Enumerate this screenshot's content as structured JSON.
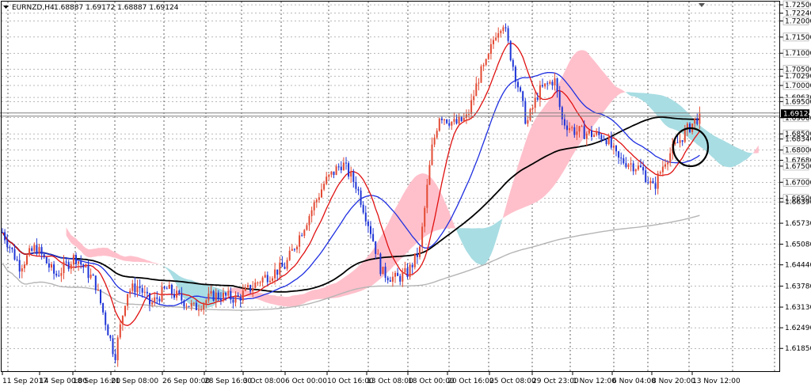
{
  "header": {
    "symbol_label": "EURNZD,H4",
    "ohlc_text": "1.68887 1.69172 1.68887 1.69124"
  },
  "colors": {
    "background": "#ffffff",
    "candle_up": "#e34a33",
    "candle_down": "#1f35d6",
    "ma_fast": "#e01010",
    "ma_mid": "#1f2fe0",
    "ma_slow": "#000000",
    "ma_200": "#b5b5b5",
    "kumo_bull": "#ffc0cb",
    "kumo_bear": "#a8dde3",
    "grid": "#000000",
    "price_box_bg": "#000000",
    "price_box_fg": "#ffffff"
  },
  "chart_data": {
    "type": "candlestick",
    "ylim": [
      1.6112,
      1.726
    ],
    "yticks": [
      "1.72500",
      "1.72240",
      "1.72000",
      "1.71500",
      "1.71000",
      "1.70500",
      "1.70290",
      "1.70000",
      "1.69630",
      "1.69500",
      "1.69000",
      "1.68500",
      "1.68340",
      "1.68000",
      "1.67680",
      "1.67500",
      "1.67000",
      "1.66500",
      "1.66390",
      "1.65730",
      "1.65080",
      "1.64440",
      "1.63780",
      "1.63130",
      "1.62490",
      "1.61850"
    ],
    "boxed_ticks": [
      "1.72500",
      "1.72000",
      "1.71500",
      "1.71000",
      "1.70500",
      "1.70000",
      "1.69500",
      "1.69000",
      "1.68500",
      "1.68000",
      "1.67500",
      "1.67000",
      "1.66500"
    ],
    "current_price": "1.69124",
    "current_price_value": 1.69124,
    "xticks": [
      "11 Sep 2017",
      "14 Sep 00:00",
      "18 Sep 16:00",
      "21 Sep 08:00",
      "26 Sep 00:00",
      "28 Sep 16:00",
      "3 Oct 08:00",
      "6 Oct 00:00",
      "10 Oct 16:00",
      "13 Oct 08:00",
      "18 Oct 00:00",
      "20 Oct 16:00",
      "25 Oct 08:00",
      "29 Oct 23:00",
      "1 Nov 12:00",
      "6 Nov 04:00",
      "8 Nov 20:00",
      "13 Nov 12:00"
    ],
    "anchors": [
      {
        "x": 0,
        "price": 1.656
      },
      {
        "x": 25,
        "price": 1.644
      },
      {
        "x": 45,
        "price": 1.65
      },
      {
        "x": 70,
        "price": 1.641
      },
      {
        "x": 95,
        "price": 1.647
      },
      {
        "x": 120,
        "price": 1.639
      },
      {
        "x": 145,
        "price": 1.616
      },
      {
        "x": 160,
        "price": 1.636
      },
      {
        "x": 175,
        "price": 1.638
      },
      {
        "x": 190,
        "price": 1.632
      },
      {
        "x": 210,
        "price": 1.637
      },
      {
        "x": 245,
        "price": 1.631
      },
      {
        "x": 270,
        "price": 1.635
      },
      {
        "x": 300,
        "price": 1.634
      },
      {
        "x": 330,
        "price": 1.64
      },
      {
        "x": 360,
        "price": 1.644
      },
      {
        "x": 385,
        "price": 1.657
      },
      {
        "x": 410,
        "price": 1.67
      },
      {
        "x": 432,
        "price": 1.676
      },
      {
        "x": 450,
        "price": 1.669
      },
      {
        "x": 468,
        "price": 1.655
      },
      {
        "x": 482,
        "price": 1.642
      },
      {
        "x": 500,
        "price": 1.64
      },
      {
        "x": 515,
        "price": 1.642
      },
      {
        "x": 530,
        "price": 1.649
      },
      {
        "x": 545,
        "price": 1.68
      },
      {
        "x": 555,
        "price": 1.691
      },
      {
        "x": 575,
        "price": 1.688
      },
      {
        "x": 590,
        "price": 1.69
      },
      {
        "x": 605,
        "price": 1.703
      },
      {
        "x": 615,
        "price": 1.707
      },
      {
        "x": 625,
        "price": 1.716
      },
      {
        "x": 635,
        "price": 1.72
      },
      {
        "x": 645,
        "price": 1.709
      },
      {
        "x": 655,
        "price": 1.699
      },
      {
        "x": 665,
        "price": 1.688
      },
      {
        "x": 680,
        "price": 1.698
      },
      {
        "x": 700,
        "price": 1.702
      },
      {
        "x": 710,
        "price": 1.689
      },
      {
        "x": 725,
        "price": 1.686
      },
      {
        "x": 745,
        "price": 1.685
      },
      {
        "x": 765,
        "price": 1.684
      },
      {
        "x": 780,
        "price": 1.677
      },
      {
        "x": 795,
        "price": 1.676
      },
      {
        "x": 810,
        "price": 1.674
      },
      {
        "x": 825,
        "price": 1.668
      },
      {
        "x": 840,
        "price": 1.677
      },
      {
        "x": 855,
        "price": 1.682
      },
      {
        "x": 870,
        "price": 1.687
      },
      {
        "x": 885,
        "price": 1.6912
      }
    ]
  }
}
